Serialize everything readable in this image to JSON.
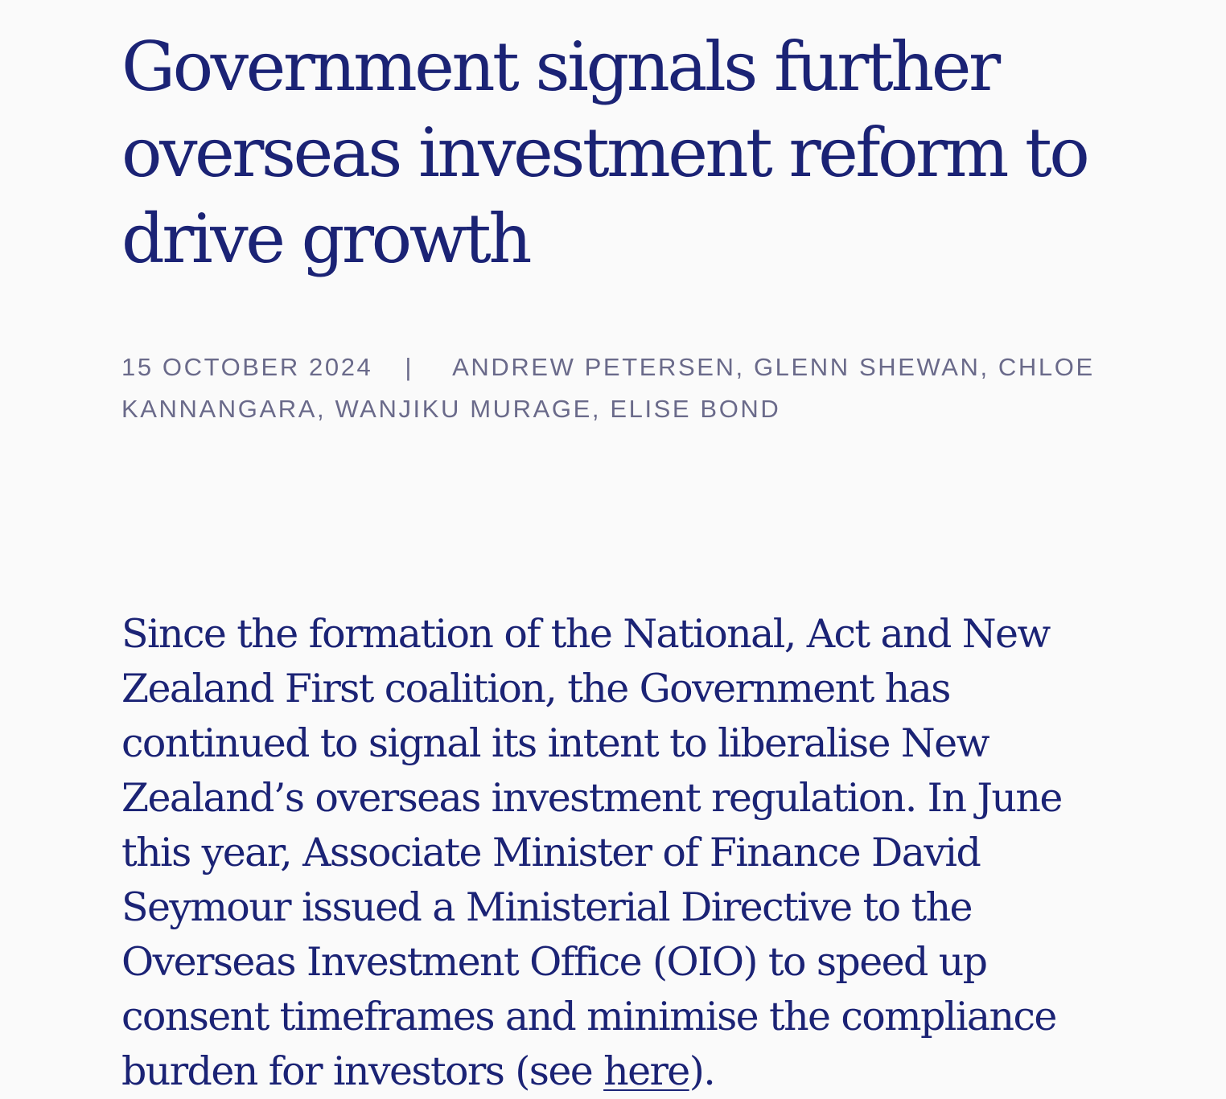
{
  "article": {
    "title": "Government signals further overseas investment reform to drive growth",
    "date": "15 OCTOBER 2024",
    "separator": "|",
    "authors": "ANDREW PETERSEN, GLENN SHEWAN, CHLOE KANNANGARA, WANJIKU MURAGE, ELISE BOND",
    "lede_text": "Since the formation of the National, Act and New Zealand First coalition, the Government has continued to signal its intent to liberalise New Zealand’s overseas investment regulation.  In June this year, Associate Minister of Finance David Seymour issued a Ministerial Directive to the Overseas Investment Office (OIO) to speed up consent timeframes and minimise the compliance burden for investors (see ",
    "lede_link": "here",
    "lede_end": ").",
    "colors": {
      "heading": "#1b2375",
      "meta": "#6a6a8a",
      "background": "#fafafa"
    }
  }
}
